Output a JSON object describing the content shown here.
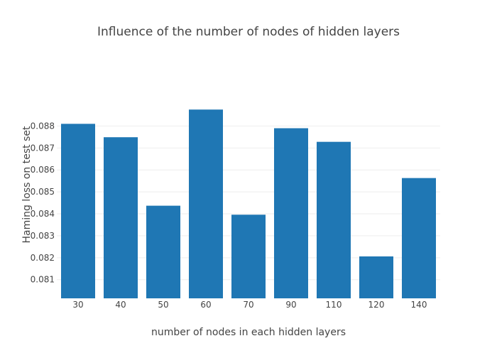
{
  "chart_data": {
    "type": "bar",
    "title": "Influence of the number of nodes of hidden layers",
    "xlabel": "number of nodes in each hidden layers",
    "ylabel": "Haming loss on test set",
    "categories": [
      "30",
      "40",
      "50",
      "60",
      "70",
      "90",
      "110",
      "120",
      "140"
    ],
    "values": [
      0.0881,
      0.08749,
      0.08437,
      0.08875,
      0.08396,
      0.0879,
      0.08728,
      0.08206,
      0.08563
    ],
    "ylim": [
      0.08015,
      0.0918
    ],
    "yticks": [
      0.081,
      0.082,
      0.083,
      0.084,
      0.085,
      0.086,
      0.087,
      0.088
    ],
    "ytick_labels": [
      "0.081",
      "0.082",
      "0.083",
      "0.084",
      "0.085",
      "0.086",
      "0.087",
      "0.088"
    ],
    "grid": true,
    "legend": "none",
    "bar_color": "#1f77b4"
  }
}
